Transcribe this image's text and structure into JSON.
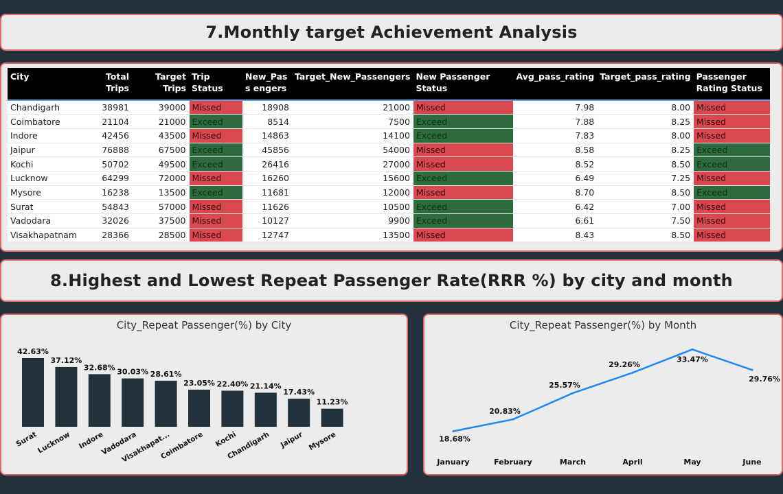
{
  "titles": {
    "section7": "7.Monthly target Achievement Analysis",
    "section8": "8.Highest and Lowest Repeat Passenger Rate(RRR %) by city and month"
  },
  "table": {
    "headers": [
      "City",
      "Total Trips",
      "Target Trips",
      "Trip Status",
      "New_Pass engers",
      "Target_New_Passengers",
      "New Passenger Status",
      "Avg_pass_rating",
      "Target_pass_rating",
      "Passenger Rating Status"
    ],
    "rows": [
      [
        "Chandigarh",
        "38981",
        "39000",
        "Missed",
        "18908",
        "21000",
        "Missed",
        "7.98",
        "8.00",
        "Missed"
      ],
      [
        "Coimbatore",
        "21104",
        "21000",
        "Exceed",
        "8514",
        "7500",
        "Exceed",
        "7.88",
        "8.25",
        "Missed"
      ],
      [
        "Indore",
        "42456",
        "43500",
        "Missed",
        "14863",
        "14100",
        "Exceed",
        "7.83",
        "8.00",
        "Missed"
      ],
      [
        "Jaipur",
        "76888",
        "67500",
        "Exceed",
        "45856",
        "54000",
        "Missed",
        "8.58",
        "8.25",
        "Exceed"
      ],
      [
        "Kochi",
        "50702",
        "49500",
        "Exceed",
        "26416",
        "27000",
        "Missed",
        "8.52",
        "8.50",
        "Exceed"
      ],
      [
        "Lucknow",
        "64299",
        "72000",
        "Missed",
        "16260",
        "15600",
        "Exceed",
        "6.49",
        "7.25",
        "Missed"
      ],
      [
        "Mysore",
        "16238",
        "13500",
        "Exceed",
        "11681",
        "12000",
        "Missed",
        "8.70",
        "8.50",
        "Exceed"
      ],
      [
        "Surat",
        "54843",
        "57000",
        "Missed",
        "11626",
        "10500",
        "Exceed",
        "6.42",
        "7.00",
        "Missed"
      ],
      [
        "Vadodara",
        "32026",
        "37500",
        "Missed",
        "10127",
        "9900",
        "Exceed",
        "6.61",
        "7.50",
        "Missed"
      ],
      [
        "Visakhapatnam",
        "28366",
        "28500",
        "Missed",
        "12747",
        "13500",
        "Missed",
        "8.43",
        "8.50",
        "Missed"
      ]
    ]
  },
  "colors": {
    "missed": "#d9474f",
    "exceed": "#2e6b3e",
    "bar": "#22323d",
    "line": "#1e88f0"
  },
  "chart_data": [
    {
      "type": "bar",
      "title": "City_Repeat Passenger(%) by City",
      "categories": [
        "Surat",
        "Lucknow",
        "Indore",
        "Vadodara",
        "Visakhapat...",
        "Coimbatore",
        "Kochi",
        "Chandigarh",
        "Jaipur",
        "Mysore"
      ],
      "values": [
        42.63,
        37.12,
        32.68,
        30.03,
        28.61,
        23.05,
        22.4,
        21.14,
        17.43,
        11.23
      ],
      "labels": [
        "42.63%",
        "37.12%",
        "32.68%",
        "30.03%",
        "28.61%",
        "23.05%",
        "22.40%",
        "21.14%",
        "17.43%",
        "11.23%"
      ],
      "ylim": [
        0,
        45
      ]
    },
    {
      "type": "line",
      "title": "City_Repeat Passenger(%) by Month",
      "categories": [
        "January",
        "February",
        "March",
        "April",
        "May",
        "June"
      ],
      "values": [
        18.68,
        20.83,
        25.57,
        29.26,
        33.47,
        29.76
      ],
      "labels": [
        "18.68%",
        "20.83%",
        "25.57%",
        "29.26%",
        "33.47%",
        "29.76%"
      ],
      "ylim": [
        18,
        34
      ]
    }
  ]
}
